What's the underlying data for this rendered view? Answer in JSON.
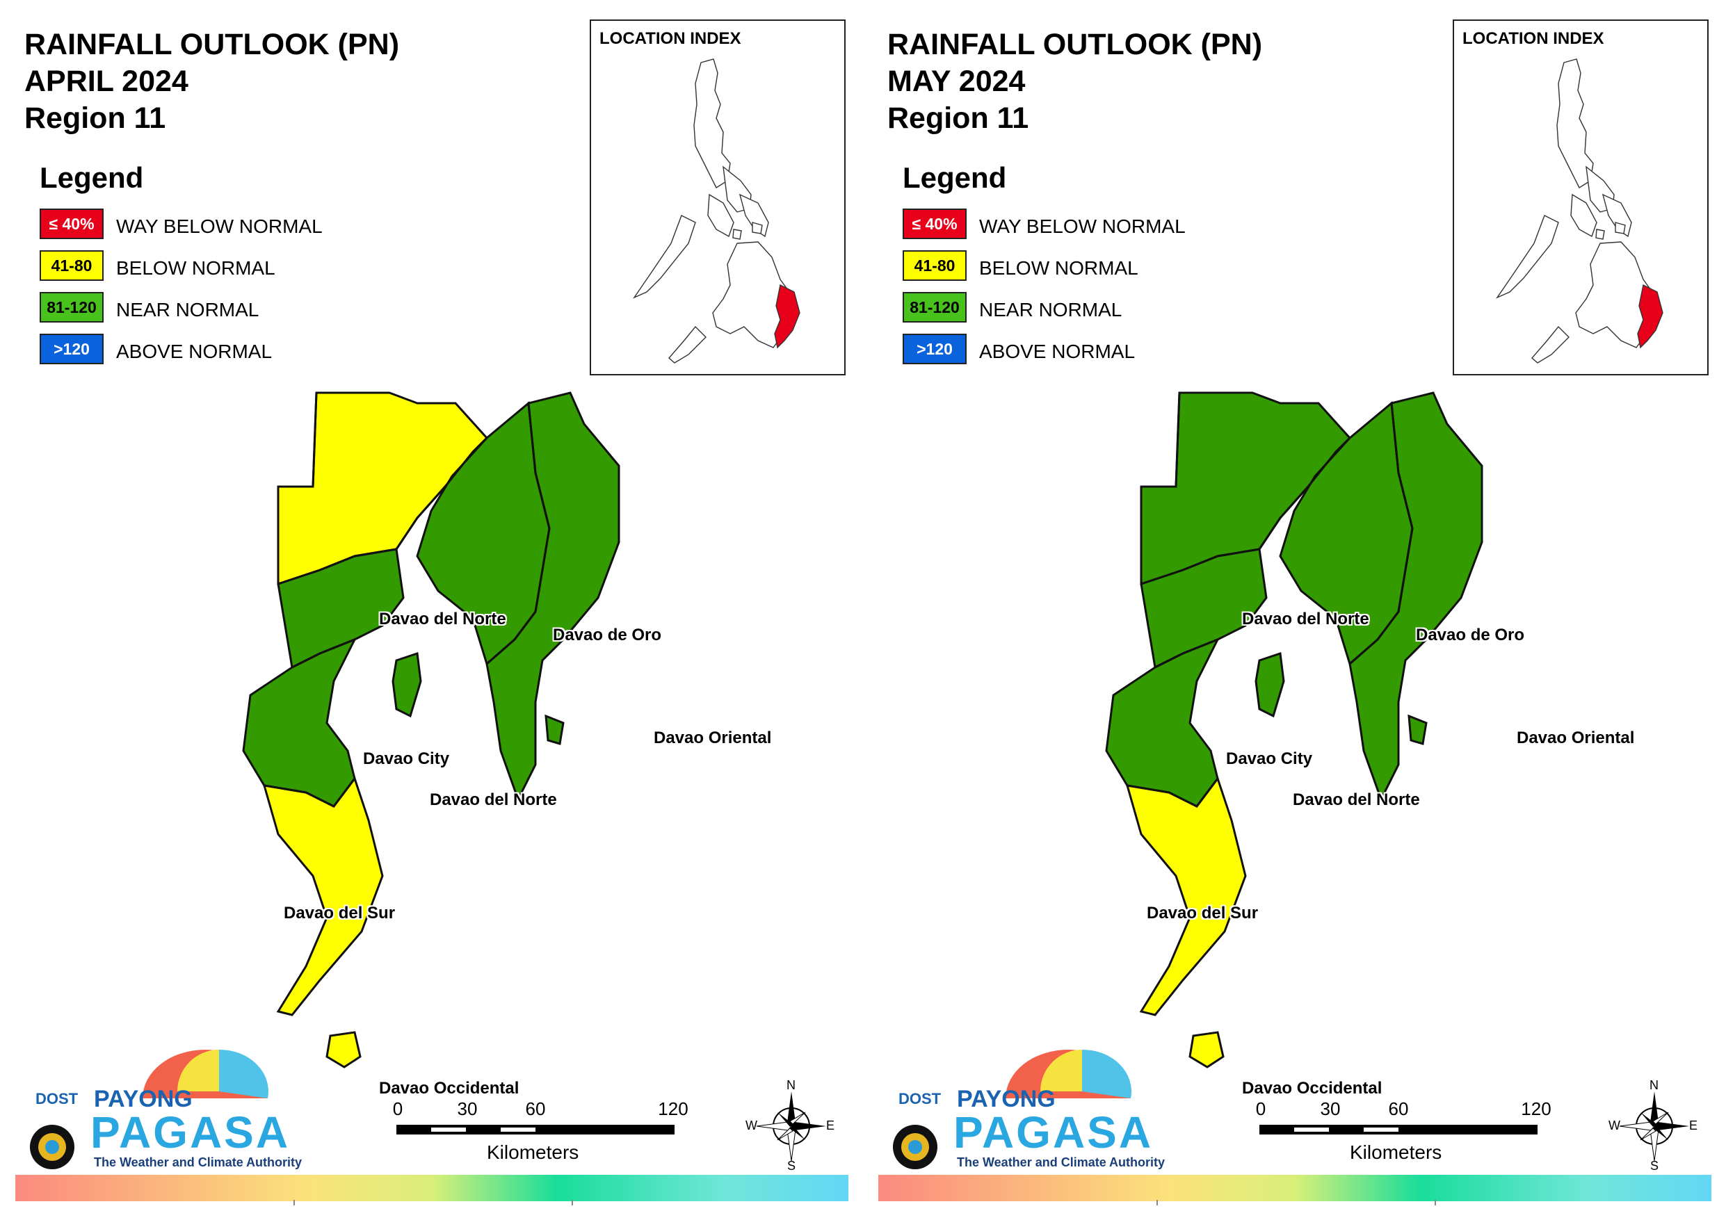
{
  "panels": [
    {
      "title_line1": "RAINFALL OUTLOOK (PN)",
      "title_line2": "APRIL 2024",
      "title_line3": "Region 11",
      "legend": {
        "title": "Legend",
        "items": [
          {
            "swatch": "≤ 40%",
            "label": "WAY BELOW NORMAL",
            "color": "#e8001a",
            "text_color": "#ffffff"
          },
          {
            "swatch": "41-80",
            "label": "BELOW NORMAL",
            "color": "#ffff00",
            "text_color": "#000000"
          },
          {
            "swatch": "81-120",
            "label": "NEAR NORMAL",
            "color": "#49c21d",
            "text_color": "#000000"
          },
          {
            "swatch": ">120",
            "label": "ABOVE NORMAL",
            "color": "#0a62dc",
            "text_color": "#ffffff"
          }
        ]
      },
      "location_index": "LOCATION INDEX",
      "provinces": {
        "davao_del_norte_n": "Davao del Norte",
        "davao_de_oro": "Davao de Oro",
        "davao_oriental": "Davao Oriental",
        "davao_city": "Davao City",
        "davao_del_norte_s": "Davao del Norte",
        "davao_del_sur": "Davao del Sur",
        "davao_occidental": "Davao Occidental"
      },
      "categories": {
        "davao_del_norte_n": "below_normal",
        "davao_de_oro": "near_normal",
        "davao_oriental": "near_normal",
        "davao_city": "near_normal",
        "davao_del_sur": "near_normal",
        "davao_occidental": "below_normal"
      }
    },
    {
      "title_line1": "RAINFALL OUTLOOK (PN)",
      "title_line2": "MAY 2024",
      "title_line3": "Region 11",
      "legend": {
        "title": "Legend",
        "items": [
          {
            "swatch": "≤ 40%",
            "label": "WAY BELOW NORMAL",
            "color": "#e8001a",
            "text_color": "#ffffff"
          },
          {
            "swatch": "41-80",
            "label": "BELOW NORMAL",
            "color": "#ffff00",
            "text_color": "#000000"
          },
          {
            "swatch": "81-120",
            "label": "NEAR NORMAL",
            "color": "#49c21d",
            "text_color": "#000000"
          },
          {
            "swatch": ">120",
            "label": "ABOVE NORMAL",
            "color": "#0a62dc",
            "text_color": "#ffffff"
          }
        ]
      },
      "location_index": "LOCATION INDEX",
      "provinces": {
        "davao_del_norte_n": "Davao del Norte",
        "davao_de_oro": "Davao de Oro",
        "davao_oriental": "Davao Oriental",
        "davao_city": "Davao City",
        "davao_del_norte_s": "Davao del Norte",
        "davao_del_sur": "Davao del Sur",
        "davao_occidental": "Davao Occidental"
      },
      "categories": {
        "davao_del_norte_n": "near_normal",
        "davao_de_oro": "near_normal",
        "davao_oriental": "near_normal",
        "davao_city": "near_normal",
        "davao_del_sur": "near_normal",
        "davao_occidental": "below_normal"
      }
    }
  ],
  "branding": {
    "dost": "DOST",
    "payong": "PAYONG",
    "pagasa": "PAGASA",
    "tagline": "The Weather and Climate Authority"
  },
  "scale": {
    "ticks": [
      "0",
      "30",
      "60",
      "120"
    ],
    "unit": "Kilometers"
  },
  "compass": {
    "n": "N",
    "s": "S",
    "e": "E",
    "w": "W"
  },
  "colors": {
    "near_normal": "#339a00",
    "below_normal": "#ffff00",
    "highlight": "#e8001a"
  }
}
